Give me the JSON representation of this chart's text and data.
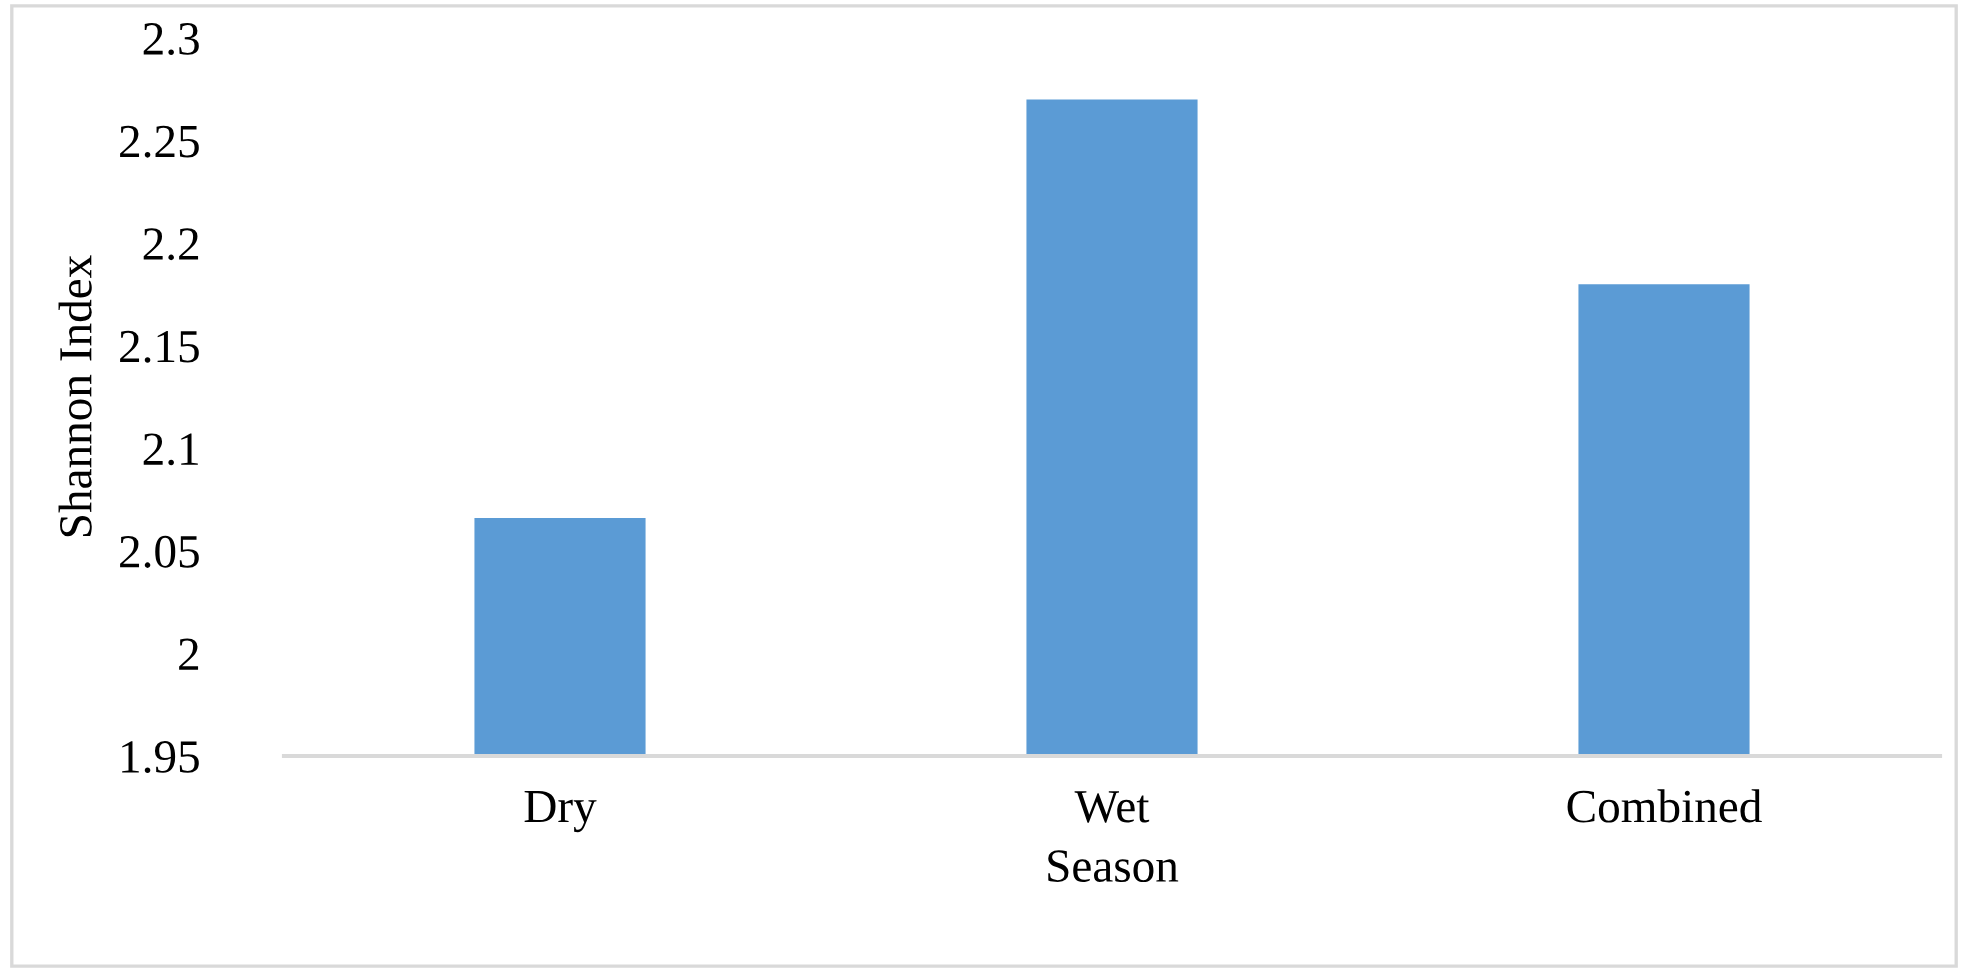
{
  "chart_data": {
    "type": "bar",
    "xlabel": "Season",
    "ylabel": "Shannon Index",
    "categories": [
      "Dry",
      "Wet",
      "Combined"
    ],
    "values": [
      2.066,
      2.27,
      2.18
    ],
    "color": "#5b9bd5",
    "ylim": [
      1.95,
      2.3
    ],
    "yticks": [
      1.95,
      {
        "value": 2.0,
        "label": "2"
      },
      2.05,
      {
        "value": 2.1,
        "label": "2.1"
      },
      2.15,
      {
        "value": 2.2,
        "label": "2.2"
      },
      2.25,
      {
        "value": 2.3,
        "label": "2.3"
      }
    ],
    "grid": false
  }
}
